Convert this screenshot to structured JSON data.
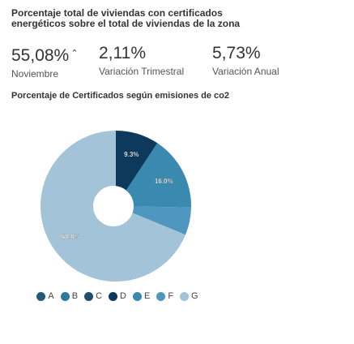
{
  "header": {
    "title": "Porcentaje total de viviendas con certificados energéticos sobre el total de viviendas de la zona"
  },
  "metrics": [
    {
      "value": "55,08%",
      "label": "Noviembre",
      "trend_icon": "caret-up-icon",
      "trend_symbol": "⌃"
    },
    {
      "value": "2,11%",
      "label": "Variación Trimestral"
    },
    {
      "value": "5,73%",
      "label": "Variación Anual"
    }
  ],
  "chart_data": {
    "type": "pie",
    "title": "Porcentaje de Certificados según emisiones de co2",
    "categories": [
      "A",
      "B",
      "C",
      "D",
      "E",
      "F",
      "G"
    ],
    "values": [
      0.0,
      0.0,
      0.0,
      9.3,
      16.0,
      5.9,
      68.8
    ],
    "data_labels": [
      "",
      "",
      "",
      "9.3%",
      "16.0%",
      "",
      "68.8%"
    ],
    "colors": [
      "#1f5a7a",
      "#2a7aa0",
      "#1b4f6e",
      "#0d3a5c",
      "#3a8ab0",
      "#4f97bf",
      "#a3c4d8"
    ],
    "legend_position": "bottom",
    "donut_hole": "white-circle"
  }
}
